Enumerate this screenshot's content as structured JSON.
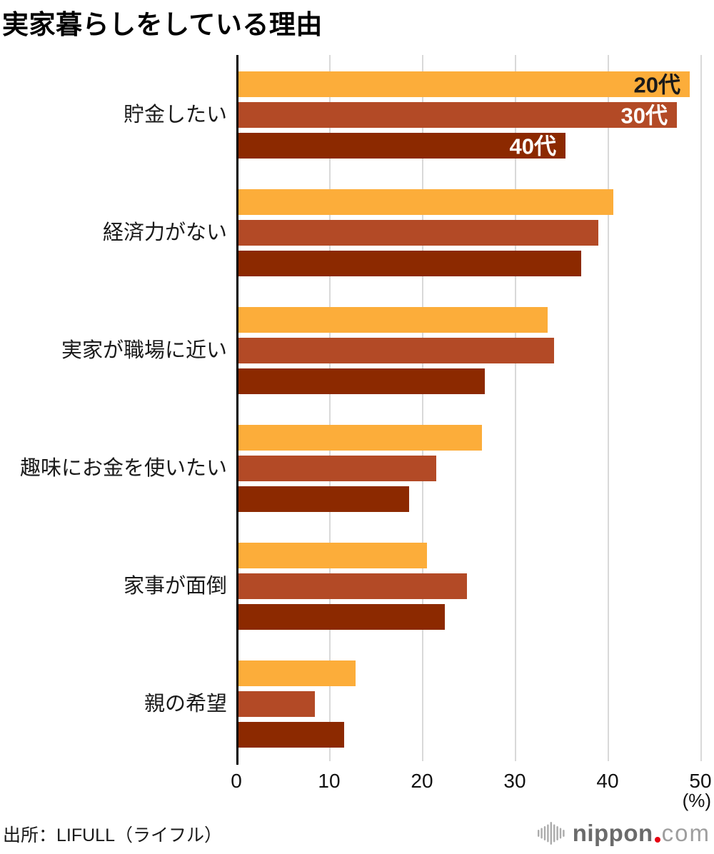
{
  "chart_data": {
    "type": "bar",
    "orientation": "horizontal",
    "title": "実家暮らしをしている理由",
    "categories": [
      "貯金したい",
      "経済力がない",
      "実家が職場に近い",
      "趣味にお金を使いたい",
      "家事が面倒",
      "親の希望"
    ],
    "series": [
      {
        "name": "20代",
        "color": "#fcad3a",
        "label_color": "#1a1a1a",
        "values": [
          48.6,
          40.4,
          33.3,
          26.2,
          20.3,
          12.6
        ]
      },
      {
        "name": "30代",
        "color": "#b34a26",
        "label_color": "#ffffff",
        "values": [
          47.2,
          38.8,
          34.0,
          21.3,
          24.6,
          8.2
        ]
      },
      {
        "name": "40代",
        "color": "#8c2900",
        "label_color": "#ffffff",
        "values": [
          35.2,
          36.9,
          26.5,
          18.4,
          22.2,
          11.4
        ]
      }
    ],
    "xlabel": "",
    "ylabel": "",
    "xlim": [
      0,
      50
    ],
    "ticks": [
      0,
      10,
      20,
      30,
      40,
      50
    ],
    "unit_label": "(%)",
    "grid": true,
    "legend_position": "inside-bars-first-group",
    "axis_line_color": "#000000",
    "gridline_color": "#d9d9d9"
  },
  "footer": {
    "source": "出所：LIFULL（ライフル）",
    "logo": {
      "icon": "soundwave-fan-icon",
      "text_bold": "nippon",
      "dot_color": "#e60012",
      "text_light": "com"
    }
  }
}
